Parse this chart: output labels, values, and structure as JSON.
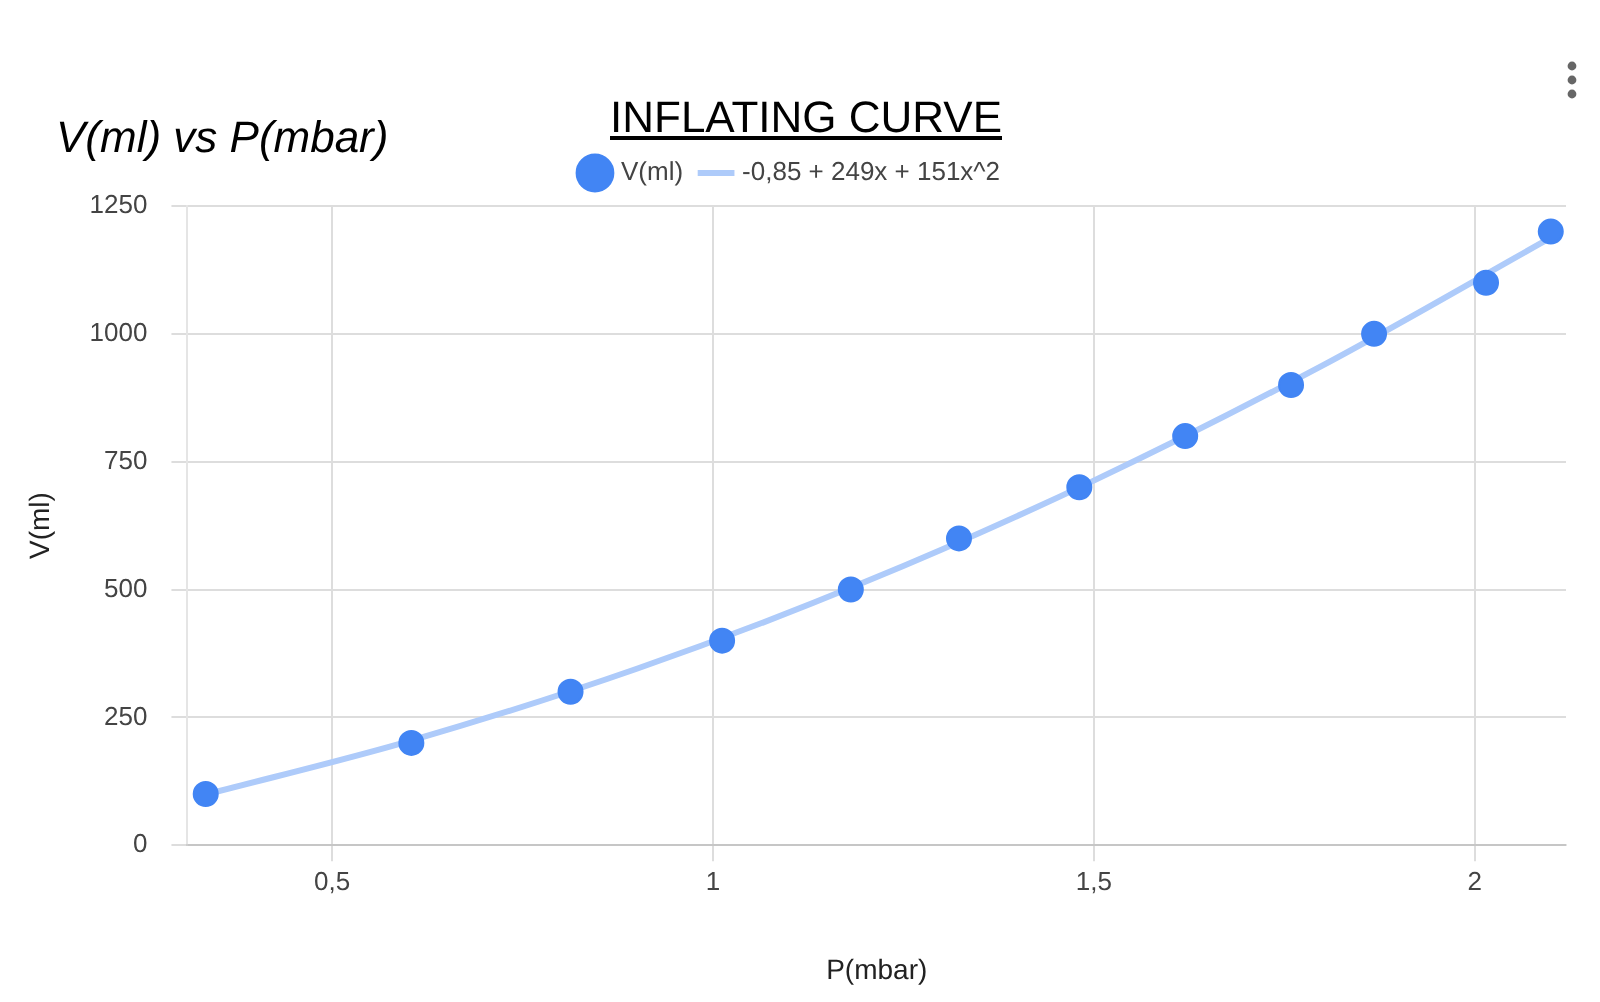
{
  "chart_data": {
    "type": "scatter",
    "title": "INFLATING CURVE",
    "subtitle": "V(ml) vs P(mbar)",
    "xlabel": "P(mbar)",
    "ylabel": "V(ml)",
    "series": [
      {
        "name": "V(ml)",
        "marker": "circle",
        "color": "#4285f4",
        "x": [
          0.334,
          0.604,
          0.813,
          1.012,
          1.181,
          1.323,
          1.481,
          1.62,
          1.759,
          1.868,
          2.015,
          2.1
        ],
        "values": [
          100,
          200,
          300,
          400,
          500,
          600,
          700,
          800,
          900,
          1000,
          1100,
          1200
        ]
      },
      {
        "name": "-0,85 + 249x + 151x^2",
        "type": "line",
        "color": "#aecbfa",
        "x": [
          0.334,
          0.6,
          0.9,
          1.2,
          1.5,
          1.8,
          2.1
        ],
        "values": [
          99,
          203,
          345,
          515,
          713,
          938,
          1188
        ]
      }
    ],
    "xlim": [
      0.31,
      2.12
    ],
    "xticks": [
      {
        "value": 0.5,
        "label": "0,5"
      },
      1,
      {
        "value": 1.5,
        "label": "1,5"
      },
      2
    ],
    "ylim": [
      0,
      1250
    ],
    "yticks": [
      0,
      250,
      500,
      750,
      1000,
      1250
    ],
    "grid": true,
    "legend": "top",
    "line_style": "solid"
  }
}
